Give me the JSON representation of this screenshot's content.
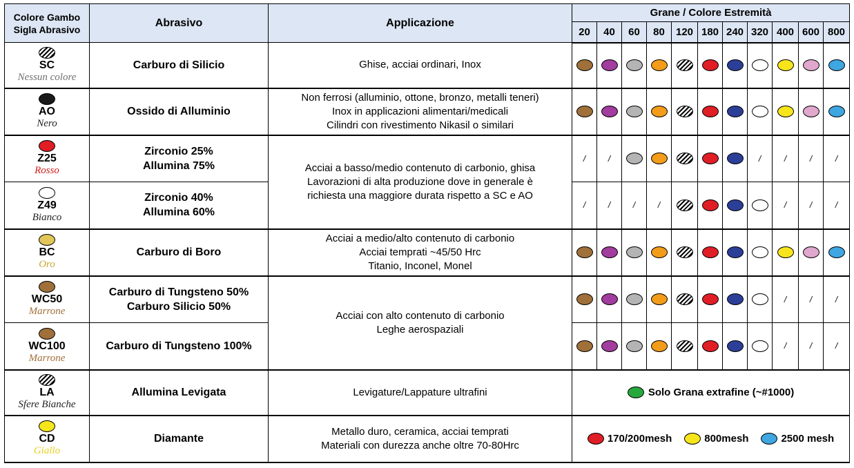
{
  "header": {
    "color_code_line1": "Colore Gambo",
    "color_code_line2": "Sigla Abrasivo",
    "abrasive": "Abrasivo",
    "application": "Applicazione",
    "grits_title": "Grane / Colore Estremità",
    "grits": [
      "20",
      "40",
      "60",
      "80",
      "120",
      "180",
      "240",
      "320",
      "400",
      "600",
      "800"
    ]
  },
  "colors": {
    "brown": "#a0703a",
    "purple": "#a23c9e",
    "gray": "#b4b4b4",
    "orange": "#f39c1a",
    "red": "#e01e26",
    "navy": "#2c3f98",
    "white": "#ffffff",
    "yellow": "#f7e51c",
    "pink": "#e0a8cc",
    "blue": "#3ea6e0",
    "green": "#27a83c",
    "black": "#1a1a1a",
    "gold": "#e2c65a",
    "header_bg": "#dce6f4"
  },
  "slash_mark": "/",
  "rows": [
    {
      "code": "SC",
      "color_name": "Nessun colore",
      "name_color": "#707070",
      "shank": "hatch",
      "abrasive": [
        "Carburo di Silicio"
      ],
      "application": [
        "Ghise, acciai ordinari, Inox"
      ],
      "tips": [
        "brown",
        "purple",
        "gray",
        "orange",
        "hatch",
        "red",
        "navy",
        "white",
        "yellow",
        "pink",
        "blue"
      ]
    },
    {
      "code": "AO",
      "color_name": "Nero",
      "name_color": "#222222",
      "shank": "black",
      "abrasive": [
        "Ossido di Alluminio"
      ],
      "application": [
        "Non ferrosi (alluminio, ottone, bronzo, metalli teneri)",
        "Inox in applicazioni alimentari/medicali",
        "Cilindri con rivestimento Nikasil o similari"
      ],
      "tips": [
        "brown",
        "purple",
        "gray",
        "orange",
        "hatch",
        "red",
        "navy",
        "white",
        "yellow",
        "pink",
        "blue"
      ]
    },
    {
      "code": "Z25",
      "color_name": "Rosso",
      "name_color": "#d01a1a",
      "shank": "red",
      "abrasive": [
        "Zirconio 25%",
        "Allumina 75%"
      ],
      "tips": [
        "none",
        "none",
        "gray",
        "orange",
        "hatch",
        "red",
        "navy",
        "none",
        "none",
        "none",
        "none"
      ]
    },
    {
      "code": "Z49",
      "color_name": "Bianco",
      "name_color": "#222222",
      "shank": "white",
      "abrasive": [
        "Zirconio 40%",
        "Allumina 60%"
      ],
      "tips": [
        "none",
        "none",
        "none",
        "none",
        "hatch",
        "red",
        "navy",
        "white",
        "none",
        "none",
        "none"
      ]
    },
    {
      "code": "BC",
      "color_name": "Oro",
      "name_color": "#c8a830",
      "shank": "gold",
      "abrasive": [
        "Carburo di Boro"
      ],
      "application": [
        "Acciai a medio/alto contenuto di  carbonio",
        "Acciai temprati ~45/50 Hrc",
        "Titanio, Inconel, Monel"
      ],
      "tips": [
        "brown",
        "purple",
        "gray",
        "orange",
        "hatch",
        "red",
        "navy",
        "white",
        "yellow",
        "pink",
        "blue"
      ]
    },
    {
      "code": "WC50",
      "color_name": "Marrone",
      "name_color": "#a0703a",
      "shank": "brown",
      "abrasive": [
        "Carburo di Tungsteno 50%",
        "Carburo Silicio 50%"
      ],
      "tips": [
        "brown",
        "purple",
        "gray",
        "orange",
        "hatch",
        "red",
        "navy",
        "white",
        "none",
        "none",
        "none"
      ]
    },
    {
      "code": "WC100",
      "color_name": "Marrone",
      "name_color": "#a0703a",
      "shank": "brown",
      "abrasive": [
        "Carburo di Tungsteno 100%"
      ],
      "tips": [
        "brown",
        "purple",
        "gray",
        "orange",
        "hatch",
        "red",
        "navy",
        "white",
        "none",
        "none",
        "none"
      ]
    },
    {
      "code": "LA",
      "color_name": "Sfere Bianche",
      "name_color": "#222222",
      "shank": "hatch",
      "abrasive": [
        "Allumina Levigata"
      ],
      "application": [
        "Levigature/Lappature ultrafini"
      ],
      "note": "Solo Grana extrafine (~#1000)"
    },
    {
      "code": "CD",
      "color_name": "Giallo",
      "name_color": "#e8d020",
      "shank": "yellow",
      "abrasive": [
        "Diamante"
      ],
      "application": [
        "Metallo duro, ceramica, acciai temprati",
        "Materiali con durezza anche oltre 70-80Hrc"
      ],
      "legend": [
        {
          "color": "red",
          "label": "170/200mesh"
        },
        {
          "color": "yellow",
          "label": "800mesh"
        },
        {
          "color": "blue",
          "label": "2500 mesh"
        }
      ]
    }
  ],
  "merged_applications": {
    "zirconio": [
      "Acciai a basso/medio contenuto di carbonio, ghisa",
      "Lavorazioni di alta produzione dove in generale è",
      "richiesta una maggiore durata rispetto a SC e AO"
    ],
    "tungsteno": [
      "Acciai con alto contenuto di carbonio",
      "Leghe aerospaziali"
    ]
  }
}
